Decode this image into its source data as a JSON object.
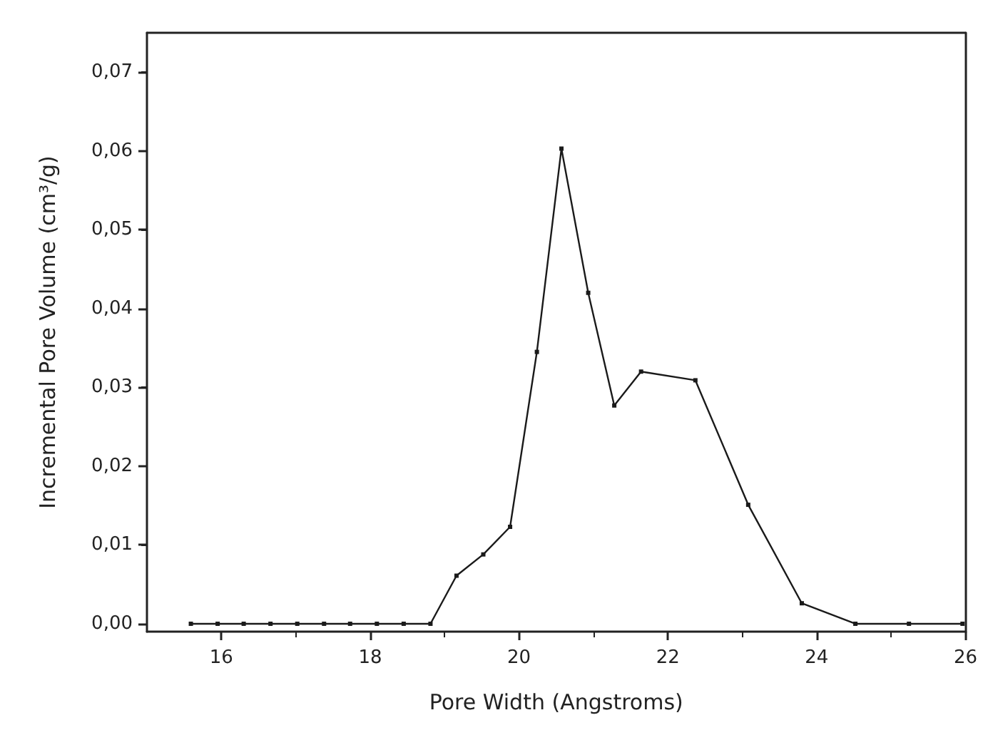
{
  "chart_data": {
    "type": "line",
    "xlabel": "Pore Width (Angstroms)",
    "ylabel": "Incremental Pore Volume (cm³/g)",
    "x": [
      15.59,
      15.95,
      16.3,
      16.66,
      17.02,
      17.38,
      17.73,
      18.09,
      18.45,
      18.81,
      19.16,
      19.52,
      19.88,
      20.24,
      20.57,
      20.93,
      21.28,
      21.64,
      22.37,
      23.08,
      23.8,
      24.52,
      25.24,
      25.96
    ],
    "series": [
      {
        "color": "#1a1a1a",
        "values": [
          0,
          0,
          0,
          0,
          0,
          0,
          0,
          0,
          0,
          0,
          0.0061,
          0.0088,
          0.0123,
          0.0345,
          0.0603,
          0.042,
          0.0277,
          0.032,
          0.0309,
          0.0151,
          0.0026,
          0,
          0,
          0
        ]
      }
    ],
    "xlim": [
      15,
      26
    ],
    "xticks": [
      16,
      18,
      20,
      22,
      24,
      26
    ],
    "ylim": [
      -0.001,
      0.075
    ],
    "yticks": [
      {
        "value": 0,
        "label": "0,00"
      },
      {
        "value": 0.01,
        "label": "0,01"
      },
      {
        "value": 0.02,
        "label": "0,02"
      },
      {
        "value": 0.03,
        "label": "0,03"
      },
      {
        "value": 0.04,
        "label": "0,04"
      },
      {
        "value": 0.05,
        "label": "0,05"
      },
      {
        "value": 0.06,
        "label": "0,06"
      },
      {
        "value": 0.07,
        "label": "0,07"
      }
    ],
    "marker": "square",
    "line_style": "solid"
  }
}
